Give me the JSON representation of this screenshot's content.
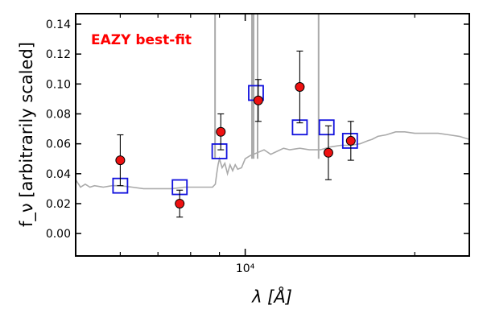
{
  "chart_data": {
    "type": "scatter",
    "xscale": "log",
    "ylabel": "f_ν [arbitrarily scaled]",
    "xlabel": "λ [Å]",
    "xlim": [
      5000,
      25000
    ],
    "ylim": [
      -0.015,
      0.147
    ],
    "yticks": [
      0.0,
      0.02,
      0.04,
      0.06,
      0.08,
      0.1,
      0.12,
      0.14
    ],
    "ytick_labels": [
      "0.00",
      "0.02",
      "0.04",
      "0.06",
      "0.08",
      "0.10",
      "0.12",
      "0.14"
    ],
    "xtick_major": [
      {
        "value": 10000,
        "label": "10⁴"
      }
    ],
    "annotation": {
      "text": "EAZY best-fit",
      "color": "#ff0000"
    },
    "colors": {
      "observed": "#ee1111",
      "model": "#1111dd",
      "spectrum": "#aaaaaa"
    },
    "observed": [
      {
        "x": 6000,
        "y": 0.049,
        "err": 0.017
      },
      {
        "x": 7650,
        "y": 0.02,
        "err": 0.009
      },
      {
        "x": 9050,
        "y": 0.068,
        "err": 0.012
      },
      {
        "x": 10550,
        "y": 0.089,
        "err": 0.014
      },
      {
        "x": 12500,
        "y": 0.098,
        "err": 0.024
      },
      {
        "x": 14050,
        "y": 0.054,
        "err": 0.018
      },
      {
        "x": 15400,
        "y": 0.062,
        "err": 0.013
      }
    ],
    "model": [
      {
        "x": 6000,
        "y": 0.032
      },
      {
        "x": 7650,
        "y": 0.031
      },
      {
        "x": 9000,
        "y": 0.055
      },
      {
        "x": 10450,
        "y": 0.094
      },
      {
        "x": 12500,
        "y": 0.071
      },
      {
        "x": 13950,
        "y": 0.071
      },
      {
        "x": 15350,
        "y": 0.062
      }
    ],
    "spectrum": [
      [
        5000,
        0.036
      ],
      [
        5100,
        0.031
      ],
      [
        5200,
        0.033
      ],
      [
        5300,
        0.031
      ],
      [
        5400,
        0.032
      ],
      [
        5600,
        0.031
      ],
      [
        5800,
        0.032
      ],
      [
        6000,
        0.032
      ],
      [
        6300,
        0.031
      ],
      [
        6600,
        0.03
      ],
      [
        7000,
        0.03
      ],
      [
        7400,
        0.03
      ],
      [
        7800,
        0.031
      ],
      [
        8200,
        0.031
      ],
      [
        8500,
        0.031
      ],
      [
        8750,
        0.031
      ],
      [
        8850,
        0.033
      ],
      [
        8900,
        0.04
      ],
      [
        8950,
        0.046
      ],
      [
        9000,
        0.05
      ],
      [
        9100,
        0.044
      ],
      [
        9200,
        0.047
      ],
      [
        9300,
        0.04
      ],
      [
        9400,
        0.046
      ],
      [
        9500,
        0.042
      ],
      [
        9600,
        0.046
      ],
      [
        9700,
        0.043
      ],
      [
        9850,
        0.044
      ],
      [
        10000,
        0.05
      ],
      [
        10200,
        0.052
      ],
      [
        10500,
        0.054
      ],
      [
        10800,
        0.056
      ],
      [
        11100,
        0.053
      ],
      [
        11400,
        0.055
      ],
      [
        11700,
        0.057
      ],
      [
        12000,
        0.056
      ],
      [
        12500,
        0.057
      ],
      [
        13000,
        0.056
      ],
      [
        13600,
        0.056
      ],
      [
        14200,
        0.058
      ],
      [
        14800,
        0.059
      ],
      [
        15400,
        0.059
      ],
      [
        16000,
        0.06
      ],
      [
        16500,
        0.062
      ],
      [
        16800,
        0.063
      ],
      [
        17200,
        0.065
      ],
      [
        17800,
        0.066
      ],
      [
        18500,
        0.068
      ],
      [
        19200,
        0.068
      ],
      [
        20000,
        0.067
      ],
      [
        21000,
        0.067
      ],
      [
        22000,
        0.067
      ],
      [
        23000,
        0.066
      ],
      [
        24000,
        0.065
      ],
      [
        25000,
        0.063
      ]
    ],
    "emission_lines": [
      {
        "x": 8840,
        "ytop": 0.147
      },
      {
        "x": 10280,
        "ytop": 0.147
      },
      {
        "x": 10350,
        "ytop": 0.147
      },
      {
        "x": 10520,
        "ytop": 0.147
      },
      {
        "x": 13500,
        "ytop": 0.147
      }
    ]
  }
}
